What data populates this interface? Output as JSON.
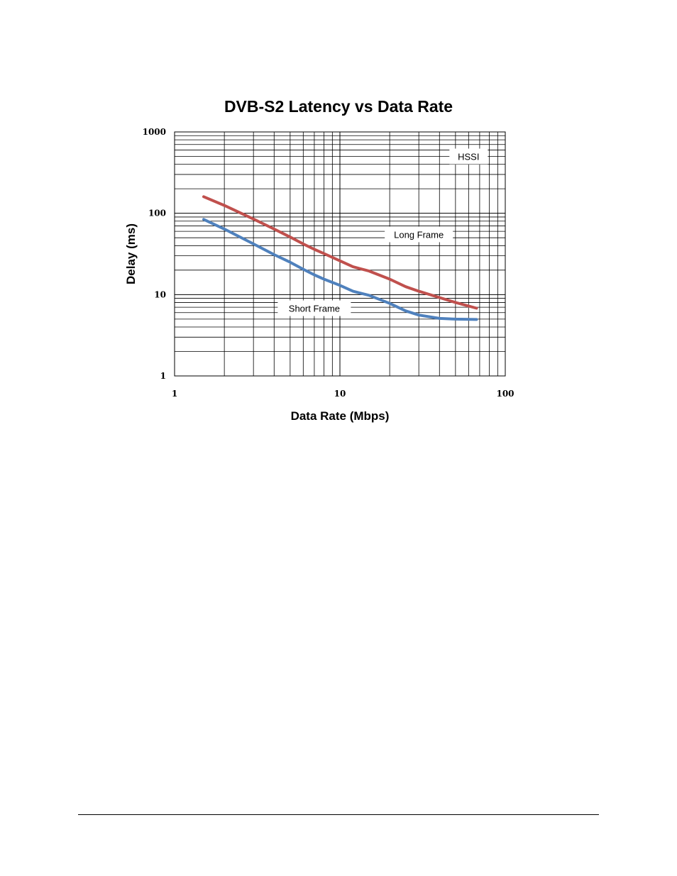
{
  "chart_data": {
    "type": "line",
    "title": "DVB-S2 Latency vs Data Rate",
    "xlabel": "Data Rate (Mbps)",
    "ylabel": "Delay (ms)",
    "xscale": "log",
    "yscale": "log",
    "xlim": [
      1,
      100
    ],
    "ylim": [
      1,
      1000
    ],
    "grid": true,
    "x_ticks": [
      "1",
      "10",
      "100"
    ],
    "y_ticks": [
      "1",
      "10",
      "100",
      "1000"
    ],
    "annotations": [
      "HSSI",
      "Long Frame",
      "Short Frame"
    ],
    "series": [
      {
        "name": "Long Frame",
        "color": "#c0504d",
        "x": [
          1.5,
          2,
          3,
          4,
          5,
          6,
          7,
          8,
          10,
          12,
          15,
          20,
          25,
          30,
          40,
          50,
          67
        ],
        "y": [
          160,
          125,
          85,
          64,
          51,
          42,
          36,
          32,
          26,
          22,
          19.5,
          15.5,
          12.5,
          11,
          9.2,
          8,
          6.8
        ]
      },
      {
        "name": "Short Frame",
        "color": "#4f81bd",
        "x": [
          1.5,
          2,
          3,
          4,
          5,
          6,
          7,
          8,
          10,
          12,
          15,
          20,
          25,
          30,
          40,
          50,
          67
        ],
        "y": [
          84,
          64,
          42,
          31,
          25,
          20.5,
          17.5,
          15.5,
          13,
          11,
          9.8,
          7.8,
          6.3,
          5.6,
          5.1,
          5.0,
          4.95
        ]
      }
    ]
  }
}
